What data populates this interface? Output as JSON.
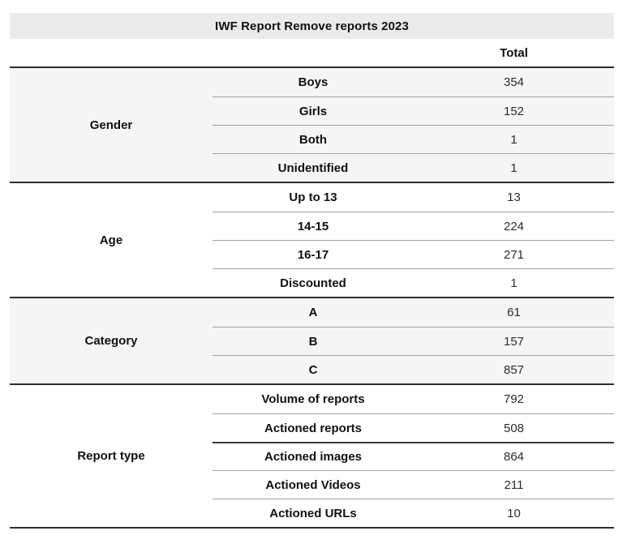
{
  "chart_data": {
    "type": "table",
    "title": "IWF Report Remove reports 2023",
    "value_column": "Total",
    "groups": [
      {
        "group": "Gender",
        "shaded": true,
        "rows": [
          {
            "label": "Boys",
            "total": 354
          },
          {
            "label": "Girls",
            "total": 152
          },
          {
            "label": "Both",
            "total": 1
          },
          {
            "label": "Unidentified",
            "total": 1
          }
        ]
      },
      {
        "group": "Age",
        "shaded": false,
        "rows": [
          {
            "label": "Up to 13",
            "total": 13
          },
          {
            "label": "14-15",
            "total": 224
          },
          {
            "label": "16-17",
            "total": 271
          },
          {
            "label": "Discounted",
            "total": 1
          }
        ]
      },
      {
        "group": "Category",
        "shaded": true,
        "rows": [
          {
            "label": "A",
            "total": 61
          },
          {
            "label": "B",
            "total": 157
          },
          {
            "label": "C",
            "total": 857
          }
        ]
      },
      {
        "group": "Report type",
        "shaded": false,
        "rows": [
          {
            "label": "Volume of reports",
            "total": 792
          },
          {
            "label": "Actioned reports",
            "total": 508
          },
          {
            "label": "Actioned images",
            "total": 864,
            "heavy_top_divider": true
          },
          {
            "label": "Actioned Videos",
            "total": 211
          },
          {
            "label": "Actioned URLs",
            "total": 10
          }
        ]
      }
    ],
    "layout_hints": {
      "grid": "row dividers only across label and value columns",
      "legend_position": "none"
    }
  },
  "colors": {
    "title_bar_bg": "#ebebeb",
    "shaded_section_bg": "#f5f5f5",
    "section_border": "#2f2f2f",
    "row_divider": "#a3a3a3",
    "strong_divider": "#3a3a3a",
    "text": "#111111"
  }
}
